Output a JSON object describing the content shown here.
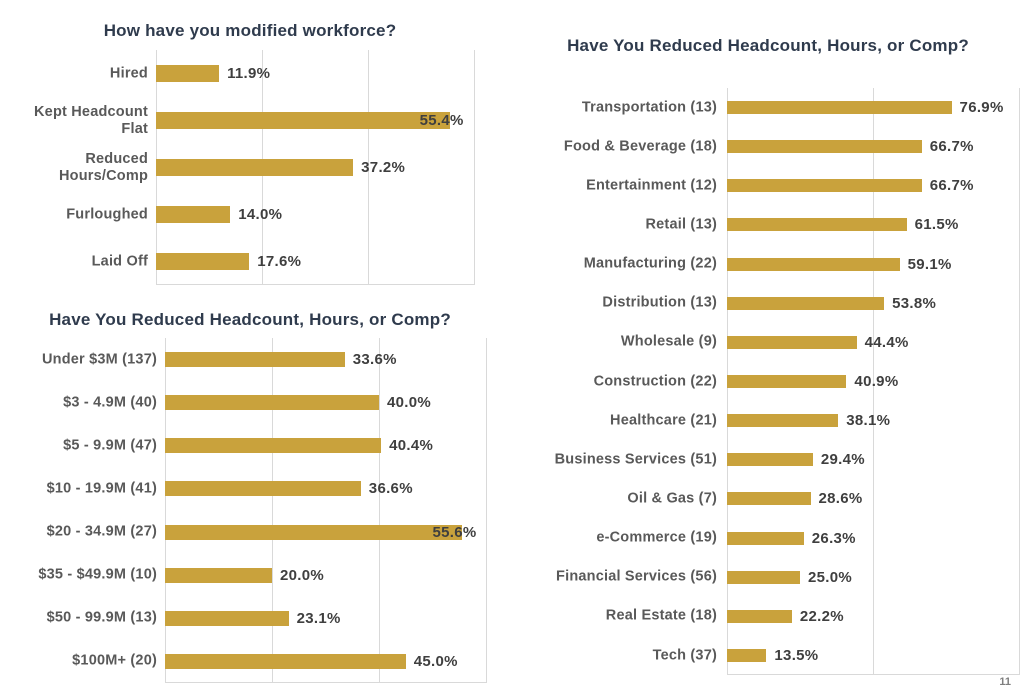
{
  "page_number": "11",
  "colors": {
    "bar": "#C9A23C",
    "title": "#2F3B4D",
    "category_label": "#595959",
    "value_label": "#3F3F3F",
    "gridline": "#D9D9D9"
  },
  "chart_data": [
    {
      "type": "bar",
      "orientation": "horizontal",
      "title": "How have you modified workforce?",
      "categories": [
        "Hired",
        "Kept Headcount Flat",
        "Reduced Hours/Comp",
        "Furloughed",
        "Laid Off"
      ],
      "values": [
        11.9,
        55.4,
        37.2,
        14.0,
        17.6
      ],
      "value_labels": [
        "11.9%",
        "55.4%",
        "37.2%",
        "14.0%",
        "17.6%"
      ],
      "xlim": [
        0,
        60
      ],
      "ticks": [
        0,
        20,
        40,
        60
      ],
      "grid": "vertical",
      "tick_labels_shown": false,
      "bar_color": "#C9A23C"
    },
    {
      "type": "bar",
      "orientation": "horizontal",
      "title": "Have You Reduced Headcount, Hours, or Comp?",
      "categories": [
        "Under $3M (137)",
        "$3 - 4.9M (40)",
        "$5 - 9.9M (47)",
        "$10 - 19.9M (41)",
        "$20 - 34.9M (27)",
        "$35 - $49.9M (10)",
        "$50 - 99.9M (13)",
        "$100M+ (20)"
      ],
      "values": [
        33.6,
        40.0,
        40.4,
        36.6,
        55.6,
        20.0,
        23.1,
        45.0
      ],
      "value_labels": [
        "33.6%",
        "40.0%",
        "40.4%",
        "36.6%",
        "55.6%",
        "20.0%",
        "23.1%",
        "45.0%"
      ],
      "xlim": [
        0,
        60
      ],
      "ticks": [
        0,
        20,
        40,
        60
      ],
      "grid": "vertical",
      "tick_labels_shown": false,
      "bar_color": "#C9A23C"
    },
    {
      "type": "bar",
      "orientation": "horizontal",
      "title": "Have You Reduced Headcount, Hours, or Comp?",
      "categories": [
        "Transportation (13)",
        "Food & Beverage (18)",
        "Entertainment (12)",
        "Retail (13)",
        "Manufacturing (22)",
        "Distribution (13)",
        "Wholesale (9)",
        "Construction (22)",
        "Healthcare (21)",
        "Business Services (51)",
        "Oil & Gas (7)",
        "e-Commerce (19)",
        "Financial Services (56)",
        "Real Estate (18)",
        "Tech (37)"
      ],
      "values": [
        76.9,
        66.7,
        66.7,
        61.5,
        59.1,
        53.8,
        44.4,
        40.9,
        38.1,
        29.4,
        28.6,
        26.3,
        25.0,
        22.2,
        13.5
      ],
      "value_labels": [
        "76.9%",
        "66.7%",
        "66.7%",
        "61.5%",
        "59.1%",
        "53.8%",
        "44.4%",
        "40.9%",
        "38.1%",
        "29.4%",
        "28.6%",
        "26.3%",
        "25.0%",
        "22.2%",
        "13.5%"
      ],
      "xlim": [
        0,
        100
      ],
      "ticks": [
        0,
        50,
        100
      ],
      "grid": "vertical",
      "tick_labels_shown": false,
      "bar_color": "#C9A23C"
    }
  ]
}
